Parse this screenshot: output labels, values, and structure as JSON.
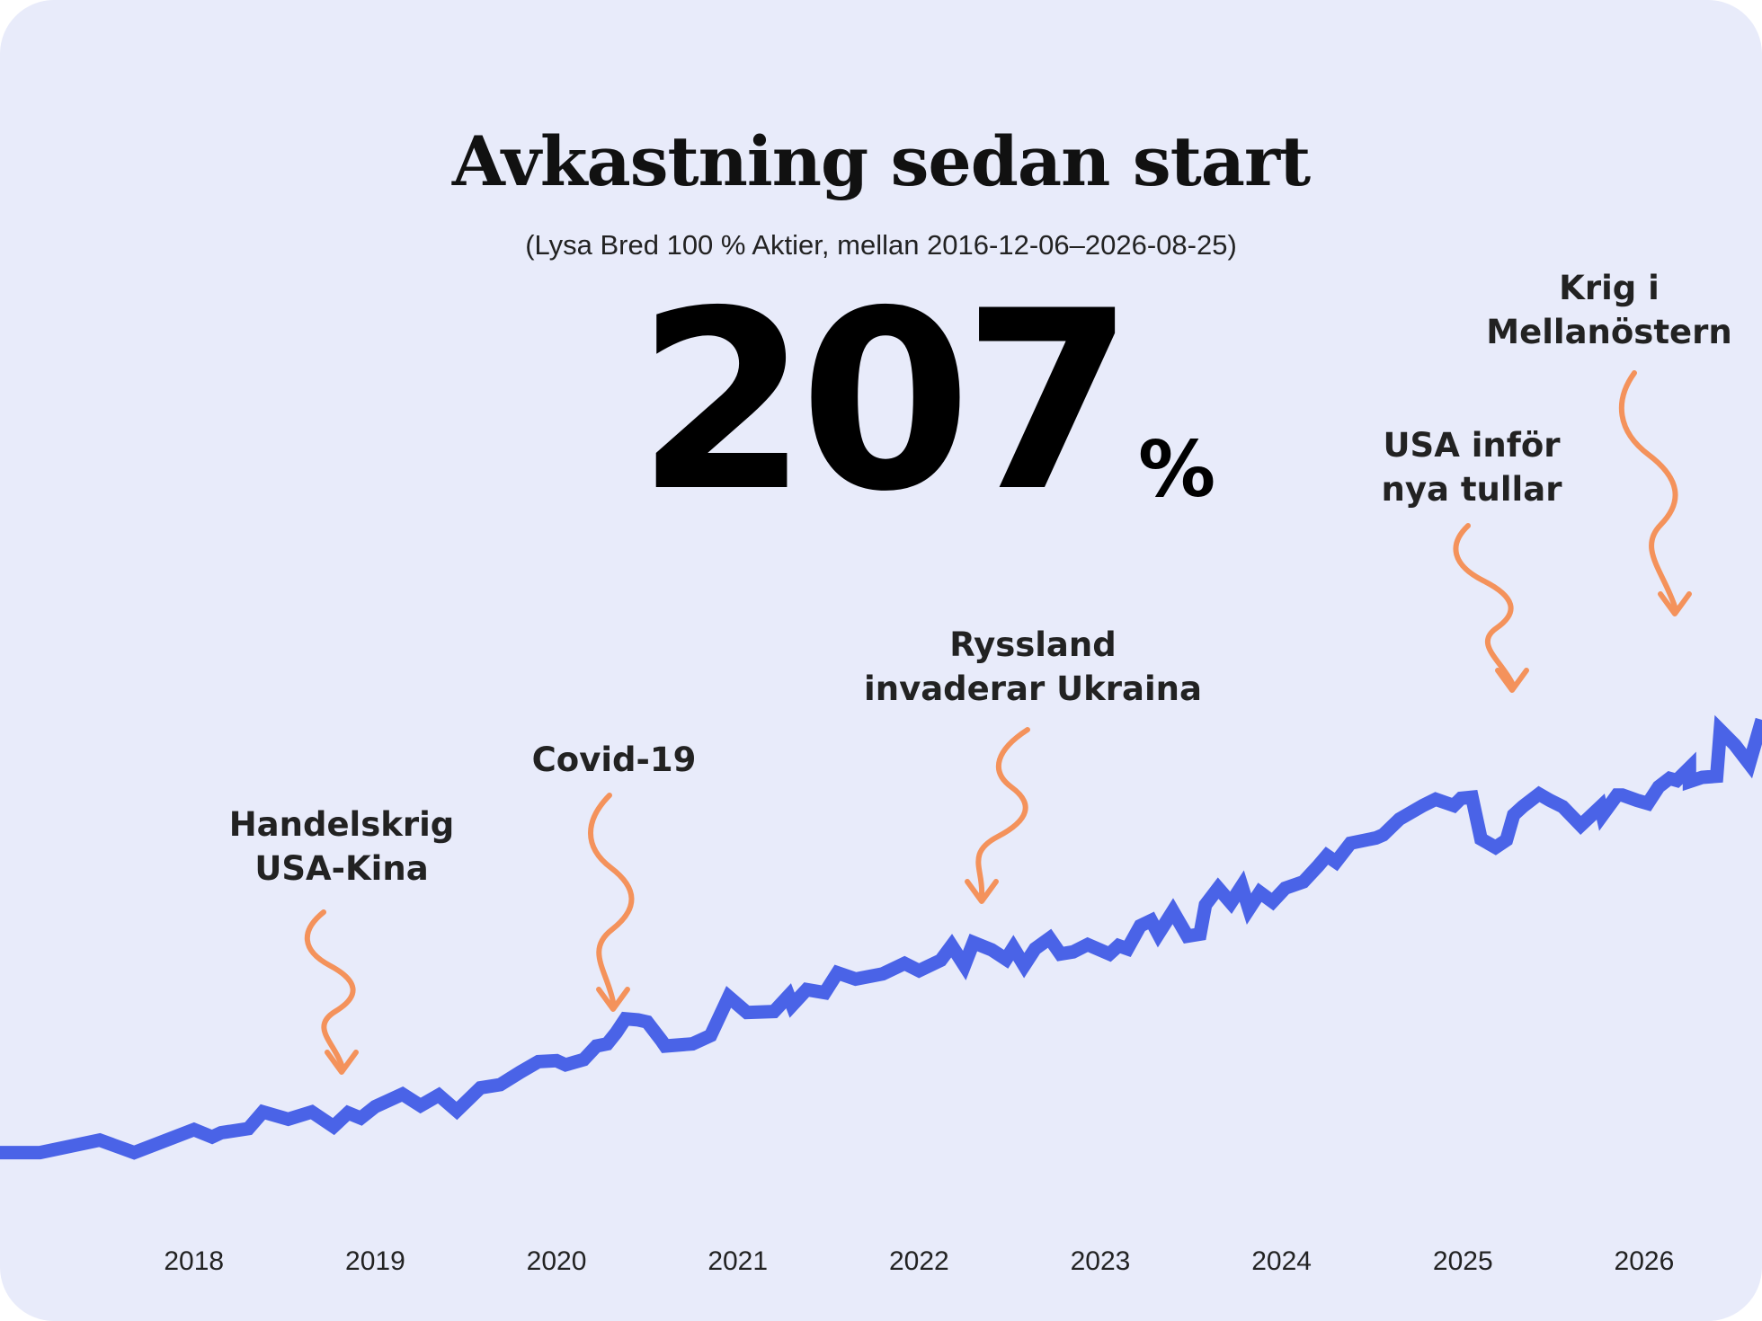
{
  "title": "Avkastning sedan start",
  "subtitle": "(Lysa Bred 100 % Aktier, mellan 2016-12-06–2026-08-25)",
  "headline": {
    "value": "207",
    "unit": "%"
  },
  "colors": {
    "background": "#e8ebfa",
    "line": "#4a63e7",
    "arrow": "#f4925b",
    "text": "#222222"
  },
  "chart_data": {
    "type": "line",
    "title": "Avkastning sedan start",
    "xlabel": "",
    "ylabel": "",
    "grid": false,
    "legend": "none",
    "xlim": [
      2016.93,
      2026.65
    ],
    "ylim": [
      -15,
      285
    ],
    "x_ticks": [
      "2018",
      "2019",
      "2020",
      "2021",
      "2022",
      "2023",
      "2024",
      "2025",
      "2026"
    ],
    "series": [
      {
        "x": [
          2016.93,
          2017.15,
          2017.48,
          2017.67,
          2018.0,
          2018.1,
          2018.15,
          2018.3,
          2018.38,
          2018.52,
          2018.65,
          2018.77,
          2018.85,
          2018.92,
          2019.0,
          2019.15,
          2019.25,
          2019.35,
          2019.45,
          2019.58,
          2019.69,
          2019.8,
          2019.9,
          2020.0,
          2020.05,
          2020.15,
          2020.22,
          2020.28,
          2020.33,
          2020.38,
          2020.45,
          2020.5,
          2020.58,
          2020.6,
          2020.75,
          2020.85,
          2020.95,
          2021.05,
          2021.2,
          2021.28,
          2021.3,
          2021.38,
          2021.48,
          2021.55,
          2021.65,
          2021.8,
          2021.92,
          2022.0,
          2022.12,
          2022.18,
          2022.25,
          2022.3,
          2022.4,
          2022.48,
          2022.52,
          2022.58,
          2022.64,
          2022.72,
          2022.78,
          2022.85,
          2022.93,
          2023.05,
          2023.1,
          2023.15,
          2023.22,
          2023.28,
          2023.32,
          2023.4,
          2023.48,
          2023.55,
          2023.58,
          2023.65,
          2023.72,
          2023.78,
          2023.82,
          2023.88,
          2023.95,
          2024.02,
          2024.12,
          2024.2,
          2024.25,
          2024.3,
          2024.38,
          2024.52,
          2024.56,
          2024.65,
          2024.78,
          2024.85,
          2024.95,
          2024.99,
          2025.05,
          2025.1,
          2025.18,
          2025.24,
          2025.28,
          2025.33,
          2025.42,
          2025.48,
          2025.55,
          2025.65,
          2025.76,
          2025.77,
          2025.85,
          2025.88,
          2025.96,
          2026.02,
          2026.08,
          2026.14,
          2026.18,
          2026.25,
          2026.25,
          2026.32,
          2026.4,
          2026.42,
          2026.5,
          2026.58,
          2026.65
        ],
        "y": [
          0.2,
          0.2,
          6.2,
          0.2,
          11.2,
          7.7,
          9.7,
          11.7,
          19.7,
          16.2,
          19.7,
          12.7,
          19.2,
          16.7,
          22.2,
          28.2,
          22.7,
          27.7,
          20.2,
          31.2,
          32.7,
          38.7,
          43.7,
          44.2,
          42.2,
          44.7,
          51.2,
          52.2,
          57.7,
          64.2,
          63.7,
          62.7,
          53.7,
          51.2,
          52.2,
          56.2,
          74.7,
          67.2,
          67.7,
          75.2,
          70.7,
          78.2,
          76.7,
          86.2,
          83.2,
          85.7,
          90.7,
          87.2,
          92.2,
          99.2,
          89.7,
          100.7,
          97.2,
          92.7,
          98.2,
          89.7,
          97.7,
          102.7,
          95.2,
          96.2,
          99.7,
          95.2,
          99.2,
          97.7,
          108.7,
          111.2,
          104.7,
          115.7,
          103.7,
          104.7,
          118.7,
          126.7,
          119.7,
          127.7,
          116.7,
          124.7,
          120.2,
          126.7,
          129.7,
          137.2,
          142.2,
          139.2,
          148.2,
          150.7,
          152.2,
          159.7,
          166.2,
          169.2,
          166.2,
          169.7,
          170.2,
          150.2,
          146.2,
          149.7,
          161.7,
          165.7,
          171.7,
          168.7,
          165.7,
          156.7,
          165.7,
          161.7,
          171.2,
          171.2,
          168.7,
          167.2,
          175.2,
          179.2,
          178.2,
          184.2,
          177.7,
          179.7,
          180.2,
          202.2,
          195.2,
          186.2,
          207.2
        ]
      }
    ],
    "annotations": [
      {
        "label_lines": [
          "Handelskrig",
          "USA-Kina"
        ],
        "x": 2018.85
      },
      {
        "label_lines": [
          "Covid-19"
        ],
        "x": 2020.28
      },
      {
        "label_lines": [
          "Ryssland",
          "invaderar Ukraina"
        ],
        "x": 2022.3
      },
      {
        "label_lines": [
          "USA inför",
          "nya tullar"
        ],
        "x": 2025.28
      },
      {
        "label_lines": [
          "Krig i",
          "Mellanöstern"
        ],
        "x": 2026.15
      }
    ]
  }
}
